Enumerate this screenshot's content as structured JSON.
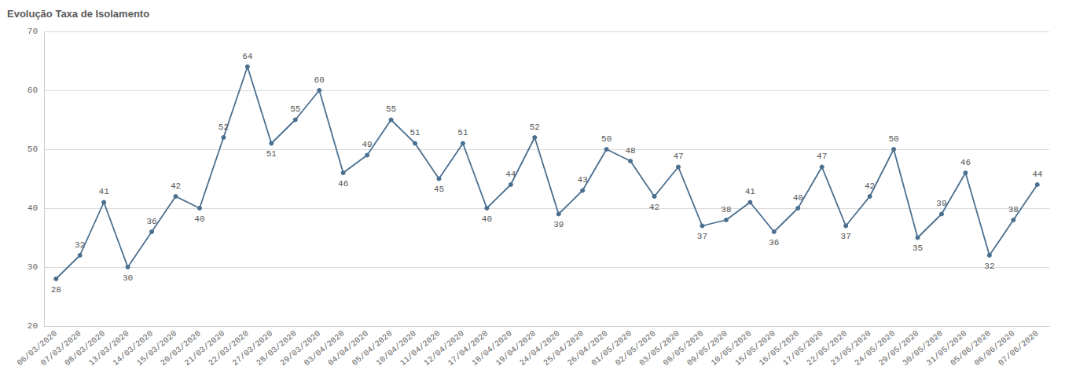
{
  "chart_data": {
    "type": "line",
    "title": "Evolução Taxa de Isolamento",
    "categories": [
      "06/03/2020",
      "07/03/2020",
      "08/03/2020",
      "13/03/2020",
      "14/03/2020",
      "15/03/2020",
      "20/03/2020",
      "21/03/2020",
      "22/03/2020",
      "27/03/2020",
      "28/03/2020",
      "29/03/2020",
      "03/04/2020",
      "04/04/2020",
      "05/04/2020",
      "10/04/2020",
      "11/04/2020",
      "12/04/2020",
      "17/04/2020",
      "18/04/2020",
      "19/04/2020",
      "24/04/2020",
      "25/04/2020",
      "26/04/2020",
      "01/05/2020",
      "02/05/2020",
      "03/05/2020",
      "08/05/2020",
      "09/05/2020",
      "10/05/2020",
      "15/05/2020",
      "16/05/2020",
      "17/05/2020",
      "22/05/2020",
      "23/05/2020",
      "24/05/2020",
      "29/05/2020",
      "30/05/2020",
      "31/05/2020",
      "05/06/2020",
      "06/06/2020",
      "07/06/2020"
    ],
    "values": [
      28,
      32,
      41,
      30,
      36,
      42,
      40,
      52,
      64,
      51,
      55,
      60,
      46,
      49,
      55,
      51,
      45,
      51,
      40,
      44,
      52,
      39,
      43,
      50,
      48,
      42,
      47,
      37,
      38,
      41,
      36,
      40,
      47,
      37,
      42,
      50,
      35,
      39,
      46,
      32,
      38,
      44
    ],
    "color": "#4a6f8f",
    "ylim": [
      20,
      70
    ],
    "yticks": [
      20,
      30,
      40,
      50,
      60,
      70
    ],
    "grid": true,
    "data_labels": true,
    "marker": "circle"
  }
}
